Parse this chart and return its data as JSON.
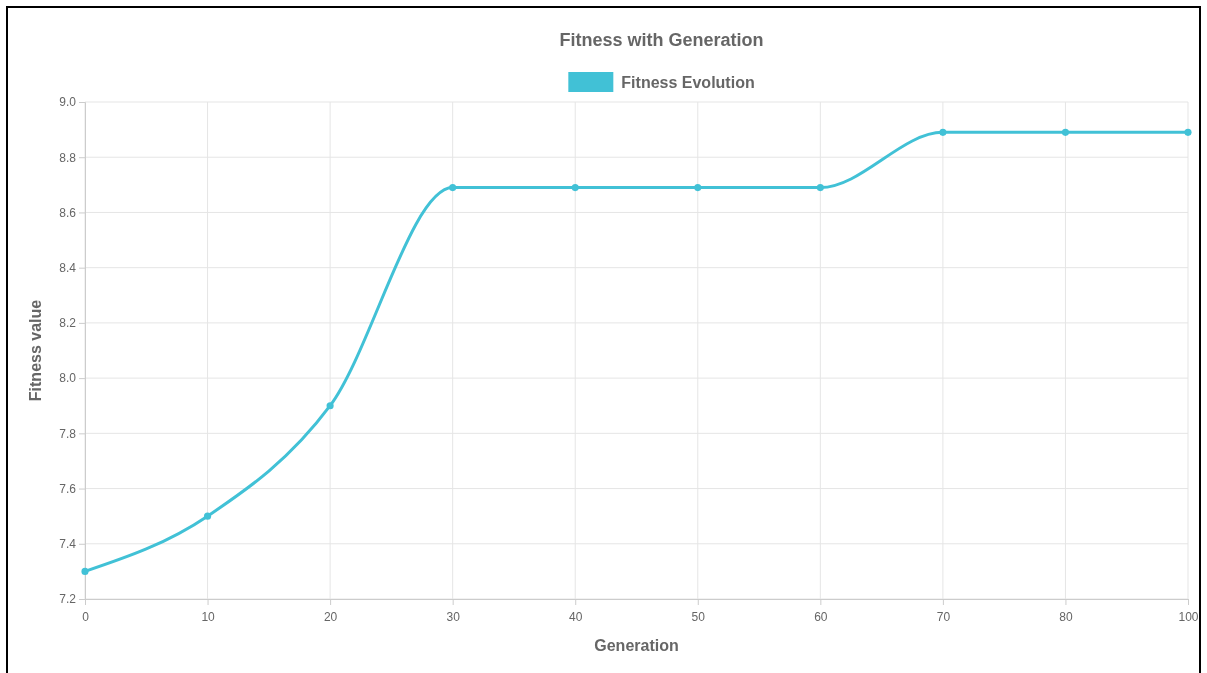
{
  "chart_data": {
    "type": "line",
    "title": "Fitness with Generation",
    "xlabel": "Generation",
    "ylabel": "Fitness value",
    "categories": [
      "0",
      "10",
      "20",
      "30",
      "40",
      "50",
      "60",
      "70",
      "80",
      "100"
    ],
    "series": [
      {
        "name": "Fitness Evolution",
        "color": "#41c1d6",
        "values": [
          7.3,
          7.5,
          7.9,
          8.69,
          8.69,
          8.69,
          8.69,
          8.89,
          8.89,
          8.89
        ]
      }
    ],
    "ylim": [
      7.2,
      9.0
    ],
    "yticks": [
      {
        "value": 7.2,
        "label": "7.2"
      },
      {
        "value": 7.4,
        "label": "7.4"
      },
      {
        "value": 7.6,
        "label": "7.6"
      },
      {
        "value": 7.8,
        "label": "7.8"
      },
      {
        "value": 8.0,
        "label": "8.0"
      },
      {
        "value": 8.2,
        "label": "8.2"
      },
      {
        "value": 8.4,
        "label": "8.4"
      },
      {
        "value": 8.6,
        "label": "8.6"
      },
      {
        "value": 8.8,
        "label": "8.8"
      },
      {
        "value": 9.0,
        "label": "9.0"
      }
    ],
    "grid": true,
    "legend": "top",
    "marker": "circle",
    "line_style": "solid"
  }
}
